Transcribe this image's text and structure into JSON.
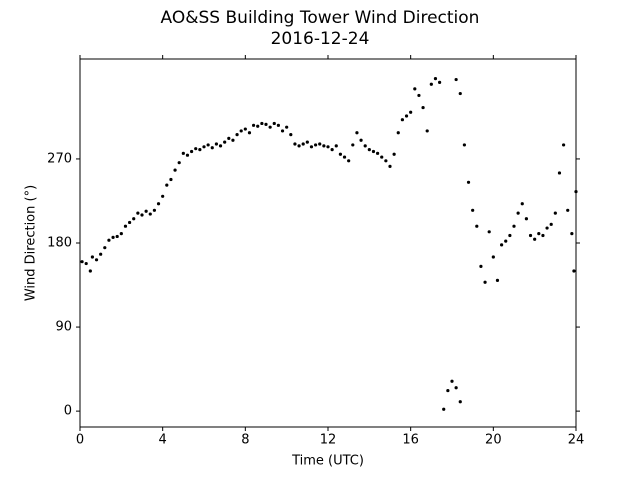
{
  "chart_data": {
    "type": "scatter",
    "title": "AO&SS Building Tower Wind Direction",
    "subtitle": "2016-12-24",
    "xlabel": "Time (UTC)",
    "ylabel": "Wind Direction (°)",
    "color": "#000000",
    "xlim": [
      0,
      24
    ],
    "xticks": [
      0,
      4,
      8,
      12,
      16,
      20,
      24
    ],
    "ylim": [
      -17,
      377
    ],
    "yticks": [
      0,
      90,
      180,
      270
    ],
    "x": [
      0.1,
      0.3,
      0.5,
      0.6,
      0.8,
      1.0,
      1.2,
      1.4,
      1.6,
      1.8,
      2.0,
      2.2,
      2.4,
      2.6,
      2.8,
      3.0,
      3.2,
      3.4,
      3.6,
      3.8,
      4.0,
      4.2,
      4.4,
      4.6,
      4.8,
      5.0,
      5.2,
      5.4,
      5.6,
      5.8,
      6.0,
      6.2,
      6.4,
      6.6,
      6.8,
      7.0,
      7.2,
      7.4,
      7.6,
      7.8,
      8.0,
      8.2,
      8.4,
      8.6,
      8.8,
      9.0,
      9.2,
      9.4,
      9.6,
      9.8,
      10.0,
      10.2,
      10.4,
      10.6,
      10.8,
      11.0,
      11.2,
      11.4,
      11.6,
      11.8,
      12.0,
      12.2,
      12.4,
      12.6,
      12.8,
      13.0,
      13.2,
      13.4,
      13.6,
      13.8,
      14.0,
      14.2,
      14.4,
      14.6,
      14.8,
      15.0,
      15.2,
      15.4,
      15.6,
      15.8,
      16.0,
      16.2,
      16.4,
      16.6,
      16.8,
      17.0,
      17.2,
      17.4,
      17.6,
      17.8,
      18.0,
      18.2,
      18.4,
      18.2,
      18.4,
      18.6,
      18.8,
      19.0,
      19.2,
      19.4,
      19.6,
      19.8,
      20.0,
      20.2,
      20.4,
      20.6,
      20.8,
      21.0,
      21.2,
      21.4,
      21.6,
      21.8,
      22.0,
      22.2,
      22.4,
      22.6,
      22.8,
      23.0,
      23.2,
      23.4,
      23.6,
      23.8,
      23.9,
      24.0
    ],
    "values": [
      160,
      158,
      150,
      165,
      162,
      168,
      175,
      183,
      186,
      187,
      190,
      198,
      202,
      206,
      212,
      210,
      214,
      211,
      215,
      222,
      230,
      242,
      248,
      258,
      266,
      276,
      274,
      278,
      281,
      280,
      283,
      285,
      282,
      286,
      284,
      288,
      292,
      290,
      296,
      300,
      302,
      298,
      306,
      305,
      308,
      307,
      304,
      308,
      306,
      300,
      304,
      296,
      286,
      284,
      286,
      288,
      283,
      285,
      286,
      284,
      283,
      280,
      284,
      275,
      272,
      268,
      285,
      298,
      290,
      284,
      280,
      278,
      276,
      272,
      268,
      262,
      275,
      298,
      312,
      316,
      320,
      345,
      338,
      325,
      300,
      350,
      356,
      352,
      2,
      22,
      32,
      25,
      10,
      355,
      340,
      285,
      245,
      215,
      198,
      155,
      138,
      192,
      165,
      140,
      178,
      182,
      188,
      198,
      212,
      222,
      206,
      188,
      184,
      190,
      188,
      196,
      200,
      212,
      255,
      285,
      215,
      190,
      150,
      235
    ]
  }
}
